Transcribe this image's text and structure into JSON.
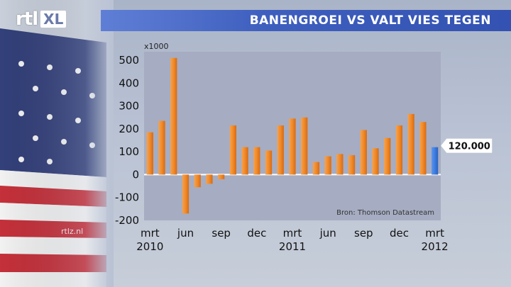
{
  "brand": {
    "logo_main": "rtl",
    "logo_suffix": "XL",
    "watermark": "rtlz.nl"
  },
  "banner": {
    "title": "BANENGROEI VS VALT VIES TEGEN"
  },
  "colors": {
    "bar": "#f08a2a",
    "forecast_bar": "#3d7de0",
    "plot_bg": "#a6acc1",
    "banner": "#3f5fbf"
  },
  "chart_data": {
    "type": "bar",
    "title": "BANENGROEI VS VALT VIES TEGEN",
    "unit_label": "x1000",
    "source": "Bron: Thomson Datastream",
    "ylim": [
      -200,
      500
    ],
    "yticks": [
      -200,
      -100,
      0,
      100,
      200,
      300,
      400,
      500
    ],
    "categories": [
      "2010-03",
      "2010-04",
      "2010-05",
      "2010-06",
      "2010-07",
      "2010-08",
      "2010-09",
      "2010-10",
      "2010-11",
      "2010-12",
      "2011-01",
      "2011-02",
      "2011-03",
      "2011-04",
      "2011-05",
      "2011-06",
      "2011-07",
      "2011-08",
      "2011-09",
      "2011-10",
      "2011-11",
      "2011-12",
      "2012-01",
      "2012-02",
      "2012-03"
    ],
    "values": [
      185,
      235,
      510,
      -170,
      -55,
      -40,
      -20,
      215,
      120,
      120,
      105,
      215,
      245,
      250,
      55,
      80,
      90,
      85,
      195,
      115,
      160,
      215,
      265,
      230,
      120
    ],
    "highlight": {
      "index": 24,
      "label": "120.000"
    },
    "x_tick_labels": [
      {
        "index": 0,
        "month": "mrt",
        "year": "2010"
      },
      {
        "index": 3,
        "month": "jun",
        "year": ""
      },
      {
        "index": 6,
        "month": "sep",
        "year": ""
      },
      {
        "index": 9,
        "month": "dec",
        "year": ""
      },
      {
        "index": 12,
        "month": "mrt",
        "year": "2011"
      },
      {
        "index": 15,
        "month": "jun",
        "year": ""
      },
      {
        "index": 18,
        "month": "sep",
        "year": ""
      },
      {
        "index": 21,
        "month": "dec",
        "year": ""
      },
      {
        "index": 24,
        "month": "mrt",
        "year": "2012"
      }
    ]
  }
}
